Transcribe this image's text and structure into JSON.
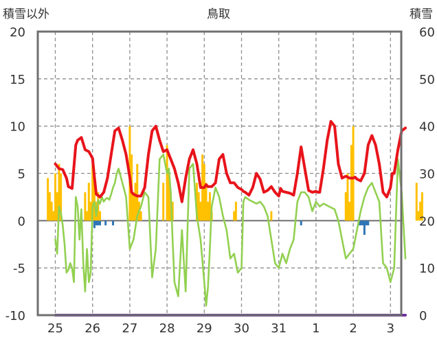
{
  "chart_data": {
    "type": "line",
    "title": "鳥取",
    "ylabel_left": "積雪以外",
    "ylabel_right": "積雪",
    "ylim_left": [
      -10,
      20
    ],
    "ylim_right": [
      0,
      60
    ],
    "yticks_left": [
      "20",
      "15",
      "10",
      "5",
      "0",
      "-5",
      "-10"
    ],
    "yticks_right": [
      "60",
      "50",
      "40",
      "30",
      "20",
      "10",
      "0"
    ],
    "xticks": [
      "25",
      "26",
      "27",
      "28",
      "29",
      "30",
      "31",
      "1",
      "2",
      "3"
    ],
    "grid": true,
    "colors": {
      "temperature": "#e8141b",
      "green_series": "#92d050",
      "orange_bars": "#ffc000",
      "blue_bars": "#2e75b6",
      "snow_depth": "#7030a0"
    },
    "series": [
      {
        "kind": "line",
        "key": "temperature",
        "axis": "left",
        "x": [
          0,
          0.1,
          0.2,
          0.3,
          0.35,
          0.45,
          0.55,
          0.6,
          0.7,
          0.8,
          0.9,
          1.0,
          1.05,
          1.1,
          1.2,
          1.3,
          1.4,
          1.5,
          1.6,
          1.7,
          1.8,
          1.9,
          2.0,
          2.05,
          2.1,
          2.2,
          2.3,
          2.4,
          2.5,
          2.6,
          2.7,
          2.8,
          2.9,
          3.0,
          3.05,
          3.1,
          3.2,
          3.3,
          3.4,
          3.5,
          3.6,
          3.7,
          3.8,
          3.9,
          4.0,
          4.05,
          4.1,
          4.2,
          4.3,
          4.4,
          4.5,
          4.6,
          4.7,
          4.8,
          4.9,
          5.0,
          5.05,
          5.1,
          5.2,
          5.3,
          5.4,
          5.5,
          5.6,
          5.7,
          5.8,
          5.9,
          6.0,
          6.05,
          6.1,
          6.2,
          6.3,
          6.4,
          6.5,
          6.6,
          6.7,
          6.8,
          6.9,
          7.0,
          7.05,
          7.1,
          7.2,
          7.3,
          7.4,
          7.5,
          7.6,
          7.7,
          7.8,
          7.9,
          8.0,
          8.05,
          8.1,
          8.2,
          8.3,
          8.4,
          8.5,
          8.6,
          8.7,
          8.8,
          8.9,
          9.0,
          9.05,
          9.1,
          9.2,
          9.3,
          9.4
        ],
        "y": [
          6,
          5.5,
          5.4,
          4.5,
          3.6,
          3.4,
          8.0,
          8.5,
          8.8,
          7.5,
          7.3,
          6.6,
          4.6,
          2.8,
          2.5,
          3.0,
          4.5,
          7.0,
          9.5,
          9.8,
          8.5,
          7.0,
          4.6,
          3.0,
          2.8,
          2.6,
          2.6,
          3.5,
          7.0,
          9.5,
          10.0,
          8.5,
          7.3,
          7.5,
          7.0,
          6.5,
          5.5,
          4.0,
          2.0,
          4.5,
          6.5,
          7.5,
          6.0,
          3.5,
          3.5,
          3.8,
          3.6,
          3.6,
          4.0,
          6.5,
          7.0,
          5.0,
          4.0,
          4.0,
          3.5,
          3.3,
          3.1,
          3.0,
          2.7,
          3.5,
          5.0,
          4.4,
          3.0,
          3.2,
          3.6,
          3.0,
          2.6,
          3.4,
          3.1,
          3.0,
          2.9,
          2.7,
          5.0,
          7.8,
          5.5,
          3.2,
          3.0,
          3.1,
          3.0,
          3.0,
          5.5,
          8.5,
          10.5,
          10.0,
          6.0,
          4.5,
          4.7,
          4.5,
          4.5,
          4.6,
          4.4,
          4.2,
          5.0,
          8.0,
          9.0,
          8.0,
          6.0,
          3.0,
          2.5,
          3.5,
          5.0,
          5.0,
          7.5,
          9.5,
          9.8
        ]
      },
      {
        "kind": "line",
        "key": "green_series",
        "axis": "left",
        "x": [
          0,
          0.05,
          0.1,
          0.15,
          0.2,
          0.25,
          0.3,
          0.35,
          0.4,
          0.45,
          0.5,
          0.55,
          0.6,
          0.65,
          0.7,
          0.75,
          0.8,
          0.85,
          0.9,
          0.95,
          1.0,
          1.05,
          1.1,
          1.15,
          1.2,
          1.25,
          1.3,
          1.35,
          1.4,
          1.45,
          1.5,
          1.55,
          1.6,
          1.65,
          1.7,
          1.8,
          1.9,
          2.0,
          2.1,
          2.2,
          2.3,
          2.4,
          2.5,
          2.6,
          2.7,
          2.8,
          2.9,
          3.0,
          3.05,
          3.1,
          3.15,
          3.2,
          3.3,
          3.4,
          3.5,
          3.6,
          3.7,
          3.8,
          3.9,
          4.0,
          4.05,
          4.1,
          4.15,
          4.2,
          4.25,
          4.3,
          4.4,
          4.5,
          4.6,
          4.7,
          4.8,
          4.9,
          5.0,
          5.05,
          5.1,
          5.2,
          5.3,
          5.4,
          5.5,
          5.6,
          5.7,
          5.8,
          5.9,
          6.0,
          6.1,
          6.2,
          6.3,
          6.4,
          6.5,
          6.6,
          6.7,
          6.8,
          6.9,
          7.0,
          7.1,
          7.2,
          7.3,
          7.4,
          7.5,
          7.6,
          7.7,
          7.8,
          7.9,
          8.0,
          8.1,
          8.2,
          8.3,
          8.4,
          8.5,
          8.6,
          8.7,
          8.8,
          8.9,
          9.0,
          9.1,
          9.2,
          9.3,
          9.4
        ],
        "y": [
          -2,
          -3.5,
          1.5,
          0.8,
          -0.5,
          -2.5,
          -5.5,
          -5.2,
          -4.5,
          -5.0,
          -6.5,
          2.5,
          1.5,
          -2.0,
          1.2,
          -4.5,
          -7.5,
          -3.0,
          -6.5,
          -5.5,
          1.5,
          2.0,
          0.5,
          2.2,
          1.8,
          2.5,
          2.0,
          2.3,
          2.4,
          2.2,
          2.8,
          3.5,
          4.0,
          5.0,
          5.5,
          4.0,
          2.5,
          -3.0,
          -2.0,
          0.5,
          1.5,
          3.0,
          2.5,
          -6.0,
          -3.0,
          6.5,
          7.0,
          5.0,
          5.5,
          3.0,
          -2.0,
          -6.5,
          -8.0,
          -1.0,
          -7.5,
          5.5,
          6.0,
          0.5,
          -2.0,
          -6.5,
          -9.0,
          -7.0,
          -3.0,
          1.5,
          2.5,
          3.5,
          2.5,
          0.5,
          -1.0,
          -4.0,
          -3.5,
          -5.5,
          -5.0,
          2.0,
          2.5,
          2.2,
          2.0,
          1.8,
          2.0,
          1.5,
          0.5,
          -2.0,
          -4.5,
          -5.0,
          -3.5,
          -4.5,
          -3.0,
          -2.0,
          2.0,
          3.0,
          3.0,
          2.5,
          1.0,
          2.0,
          1.5,
          1.8,
          1.6,
          1.4,
          1.2,
          0.0,
          -2.0,
          -4.0,
          -3.5,
          -3.0,
          -1.0,
          1.0,
          2.5,
          3.5,
          4.0,
          3.0,
          2.0,
          -4.5,
          -5.0,
          -6.5,
          -5.0,
          6.5,
          3.0,
          -4.0
        ]
      },
      {
        "kind": "bar",
        "key": "orange_bars",
        "axis": "left",
        "x": [
          -0.2,
          -0.15,
          -0.1,
          -0.05,
          0,
          0.05,
          0.1,
          0.15,
          0.8,
          0.85,
          0.9,
          0.95,
          1.0,
          1.05,
          1.1,
          1.15,
          1.2,
          2.0,
          2.05,
          2.1,
          2.15,
          2.2,
          2.25,
          2.3,
          2.9,
          3.0,
          3.05,
          3.1,
          3.15,
          3.8,
          3.85,
          3.9,
          3.95,
          4.0,
          4.05,
          4.1,
          4.15,
          4.2,
          4.8,
          4.85,
          5.8,
          7.8,
          7.85,
          7.9,
          7.95,
          8.0,
          9.7,
          9.75,
          9.8,
          9.85
        ],
        "y": [
          4.5,
          3,
          2,
          1,
          5,
          3,
          6,
          5,
          3,
          1,
          4,
          2,
          6,
          5,
          2,
          3,
          1,
          10,
          7,
          3,
          4,
          6,
          2,
          1,
          4,
          8,
          5,
          3,
          2,
          4,
          3,
          2,
          7,
          6,
          4,
          2,
          3,
          1,
          1,
          2,
          1,
          3,
          5,
          2,
          8,
          10,
          4,
          1,
          2,
          3
        ]
      },
      {
        "kind": "bar",
        "key": "blue_bars",
        "axis": "left",
        "x": [
          1.05,
          1.1,
          1.15,
          1.2,
          1.35,
          1.55,
          6.6,
          8.15,
          8.2,
          8.25,
          8.3,
          8.35,
          8.4
        ],
        "y": [
          -0.8,
          -0.5,
          -0.5,
          -0.5,
          -0.5,
          -0.5,
          -0.5,
          -0.5,
          -0.5,
          -0.5,
          -1.5,
          -0.5,
          -0.5
        ]
      },
      {
        "kind": "line",
        "key": "snow_depth",
        "axis": "right",
        "x": [
          0,
          9.4
        ],
        "y": [
          0,
          0
        ]
      }
    ]
  }
}
